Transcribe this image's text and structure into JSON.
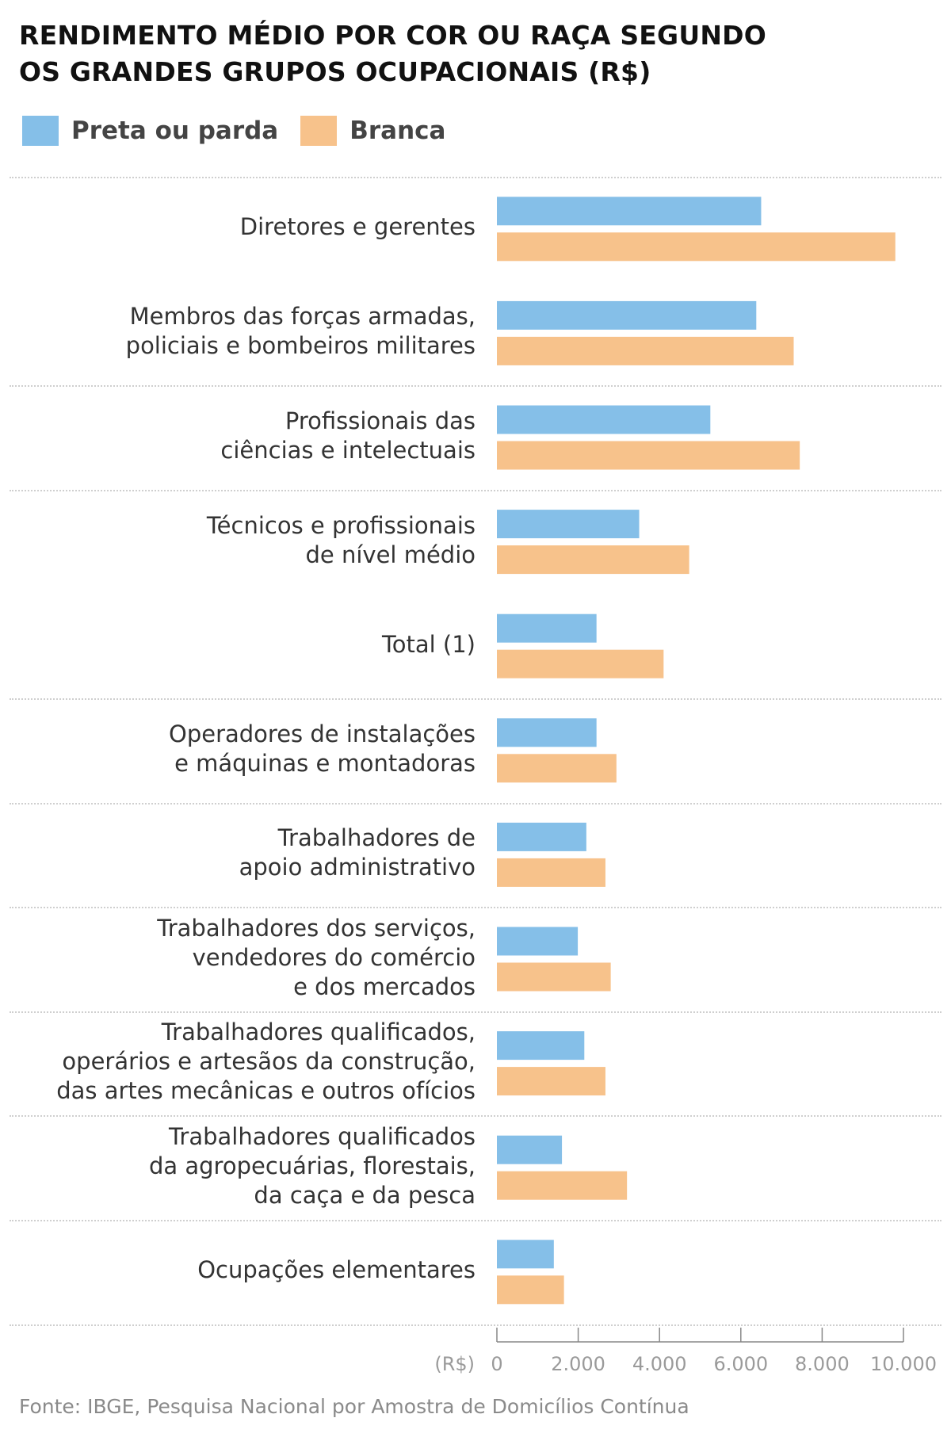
{
  "title_lines": [
    "RENDIMENTO MÉDIO POR COR OU RAÇA SEGUNDO",
    "OS GRANDES GRUPOS OCUPACIONAIS (R$)"
  ],
  "legend": [
    {
      "label": "Preta ou parda",
      "color": "#85bfe8"
    },
    {
      "label": "Branca",
      "color": "#f7c28b"
    }
  ],
  "source": "Fonte: IBGE, Pesquisa Nacional por Amostra de Domicílios Contínua",
  "chart_data": {
    "type": "bar",
    "orientation": "horizontal",
    "title": "RENDIMENTO MÉDIO POR COR OU RAÇA SEGUNDO OS GRANDES GRUPOS OCUPACIONAIS (R$)",
    "xlabel": "(R$)",
    "ylabel": "",
    "xlim": [
      0,
      10000
    ],
    "xticks": [
      0,
      2000,
      4000,
      6000,
      8000,
      10000
    ],
    "xtick_labels": [
      "0",
      "2.000",
      "4.000",
      "6.000",
      "8.000",
      "10.000"
    ],
    "axis_unit_label": "(R$)",
    "grid": false,
    "legend_position": "top-left",
    "categories": [
      [
        "Diretores e gerentes"
      ],
      [
        "Membros das forças armadas,",
        "policiais e bombeiros militares"
      ],
      [
        "Profissionais das",
        "ciências e intelectuais"
      ],
      [
        "Técnicos e profissionais",
        "de nível médio"
      ],
      [
        "Total (1)"
      ],
      [
        "Operadores de instalações",
        "e máquinas e montadoras"
      ],
      [
        "Trabalhadores de",
        "apoio administrativo"
      ],
      [
        "Trabalhadores dos serviços,",
        "vendedores do comércio",
        "e dos mercados"
      ],
      [
        "Trabalhadores qualificados,",
        "operários e artesãos da construção,",
        "das artes mecânicas e outros ofícios"
      ],
      [
        "Trabalhadores qualificados",
        "da agropecuárias, florestais,",
        "da caça e da pesca"
      ],
      [
        "Ocupações elementares"
      ]
    ],
    "series": [
      {
        "name": "Preta ou parda",
        "color": "#85bfe8",
        "values": [
          6500,
          6380,
          5250,
          3500,
          2450,
          2450,
          2200,
          1990,
          2150,
          1600,
          1400
        ]
      },
      {
        "name": "Branca",
        "color": "#f7c28b",
        "values": [
          9800,
          7300,
          7450,
          4730,
          4100,
          2940,
          2670,
          2800,
          2670,
          3200,
          1650
        ]
      }
    ],
    "dividers_after_rows": [
      1,
      2,
      4,
      5,
      6,
      7,
      8,
      9,
      10
    ]
  }
}
